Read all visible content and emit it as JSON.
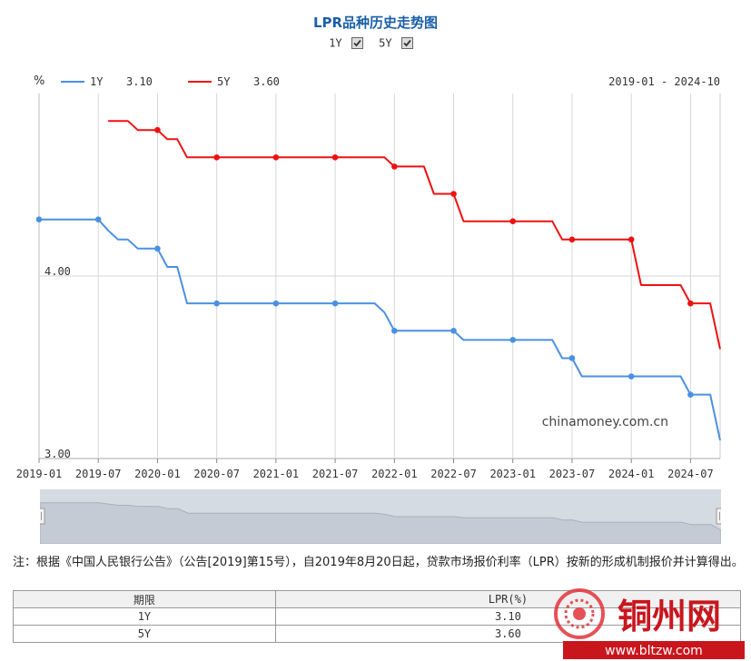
{
  "title": "LPR品种历史走势图",
  "toggles": [
    {
      "label": "1Y",
      "checked": true
    },
    {
      "label": "5Y",
      "checked": true
    }
  ],
  "chart_data": {
    "type": "line",
    "ylabel": "%",
    "date_range": "2019-01 - 2024-10",
    "xlim": [
      "2019-01",
      "2024-10"
    ],
    "ylim": [
      3.0,
      5.0
    ],
    "yticks": [
      "4.00",
      "3.00"
    ],
    "xticks": [
      "2019-01",
      "2019-07",
      "2020-01",
      "2020-07",
      "2021-01",
      "2021-07",
      "2022-01",
      "2022-07",
      "2023-01",
      "2023-07",
      "2024-01",
      "2024-07"
    ],
    "watermark_text": "chinamoney.com.cn",
    "grid": true,
    "legend_placement": "top-left",
    "series": [
      {
        "name": "1Y",
        "latest": "3.10",
        "color": "#4a90e2",
        "points": [
          [
            "2019-01",
            4.31
          ],
          [
            "2019-07",
            4.31
          ],
          [
            "2019-08",
            4.25
          ],
          [
            "2019-09",
            4.2
          ],
          [
            "2019-10",
            4.2
          ],
          [
            "2019-11",
            4.15
          ],
          [
            "2020-01",
            4.15
          ],
          [
            "2020-02",
            4.05
          ],
          [
            "2020-03",
            4.05
          ],
          [
            "2020-04",
            3.85
          ],
          [
            "2020-07",
            3.85
          ],
          [
            "2021-01",
            3.85
          ],
          [
            "2021-07",
            3.85
          ],
          [
            "2021-11",
            3.85
          ],
          [
            "2021-12",
            3.8
          ],
          [
            "2022-01",
            3.7
          ],
          [
            "2022-07",
            3.7
          ],
          [
            "2022-08",
            3.65
          ],
          [
            "2023-01",
            3.65
          ],
          [
            "2023-05",
            3.65
          ],
          [
            "2023-06",
            3.55
          ],
          [
            "2023-07",
            3.55
          ],
          [
            "2023-08",
            3.45
          ],
          [
            "2024-01",
            3.45
          ],
          [
            "2024-06",
            3.45
          ],
          [
            "2024-07",
            3.35
          ],
          [
            "2024-09",
            3.35
          ],
          [
            "2024-10",
            3.1
          ]
        ],
        "markers": [
          "2019-01",
          "2019-07",
          "2020-01",
          "2020-07",
          "2021-01",
          "2021-07",
          "2022-01",
          "2022-07",
          "2023-01",
          "2023-07",
          "2024-01",
          "2024-07"
        ]
      },
      {
        "name": "5Y",
        "latest": "3.60",
        "color": "#ee1111",
        "points": [
          [
            "2019-08",
            4.85
          ],
          [
            "2019-10",
            4.85
          ],
          [
            "2019-11",
            4.8
          ],
          [
            "2020-01",
            4.8
          ],
          [
            "2020-02",
            4.75
          ],
          [
            "2020-03",
            4.75
          ],
          [
            "2020-04",
            4.65
          ],
          [
            "2020-07",
            4.65
          ],
          [
            "2021-01",
            4.65
          ],
          [
            "2021-07",
            4.65
          ],
          [
            "2021-12",
            4.65
          ],
          [
            "2022-01",
            4.6
          ],
          [
            "2022-04",
            4.6
          ],
          [
            "2022-05",
            4.45
          ],
          [
            "2022-07",
            4.45
          ],
          [
            "2022-08",
            4.3
          ],
          [
            "2023-01",
            4.3
          ],
          [
            "2023-05",
            4.3
          ],
          [
            "2023-06",
            4.2
          ],
          [
            "2023-07",
            4.2
          ],
          [
            "2024-01",
            4.2
          ],
          [
            "2024-02",
            3.95
          ],
          [
            "2024-06",
            3.95
          ],
          [
            "2024-07",
            3.85
          ],
          [
            "2024-09",
            3.85
          ],
          [
            "2024-10",
            3.6
          ]
        ],
        "markers": [
          "2020-01",
          "2020-07",
          "2021-01",
          "2021-07",
          "2022-01",
          "2022-07",
          "2023-01",
          "2023-07",
          "2024-01",
          "2024-07"
        ]
      }
    ]
  },
  "note": "注：根据《中国人民银行公告》（公告[2019]第15号），自2019年8月20日起，贷款市场报价利率（LPR）按新的形成机制报价并计算得出。",
  "table": {
    "headers": [
      "期限",
      "LPR(%)"
    ],
    "rows": [
      [
        "1Y",
        "3.10"
      ],
      [
        "5Y",
        "3.60"
      ]
    ]
  },
  "watermark": {
    "name": "铜州网",
    "url": "www.bltzw.com"
  }
}
